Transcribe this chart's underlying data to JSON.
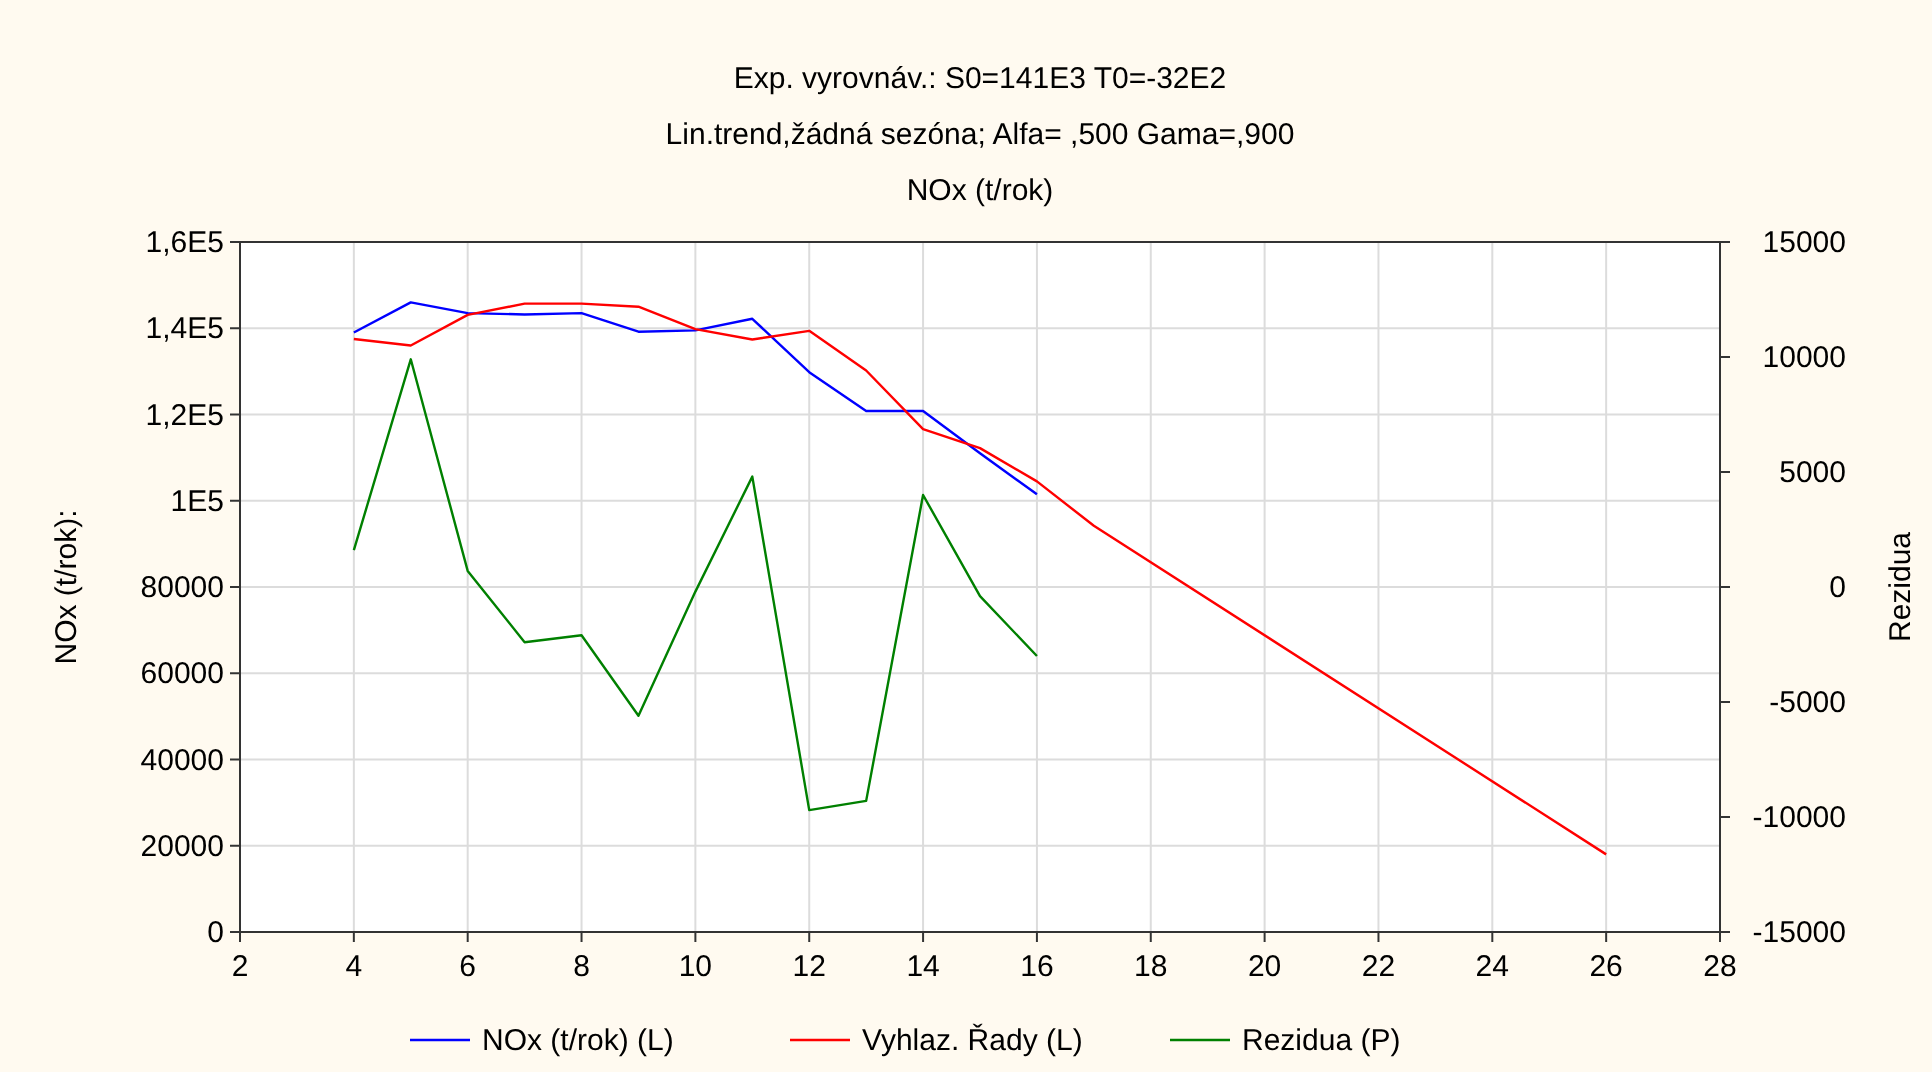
{
  "chart_data": {
    "type": "line",
    "title": "Exp. vyrovnáv.:  S0=141E3 T0=-32E2",
    "subtitle": "Lin.trend,žádná sezóna; Alfa=  ,500 Gama=,900\nNOx (t/rok)",
    "ylabel": "NOx (t/rok):",
    "y2label": "Rezidua",
    "xlim": [
      2,
      28
    ],
    "xticks": [
      2,
      4,
      6,
      8,
      10,
      12,
      14,
      16,
      18,
      20,
      22,
      24,
      26,
      28
    ],
    "ylim": [
      0,
      160000
    ],
    "yticks": [
      0,
      20000,
      40000,
      60000,
      80000,
      {
        "value": 100000,
        "label": "1E5"
      },
      {
        "value": 120000,
        "label": "1,2E5"
      },
      {
        "value": 140000,
        "label": "1,4E5"
      },
      {
        "value": 160000,
        "label": "1,6E5"
      }
    ],
    "y2lim": [
      -15000,
      15000
    ],
    "y2ticks": [
      -15000,
      -10000,
      -5000,
      0,
      5000,
      10000,
      15000
    ],
    "grid": true,
    "legend": "bottom",
    "line_style": "solid",
    "marker": "none",
    "series": [
      {
        "name": "NOx (t/rok) (L)",
        "color": "#0000ff",
        "x": [
          4,
          5,
          6,
          7,
          8,
          9,
          10,
          11,
          12,
          13,
          14,
          15,
          16
        ],
        "values": [
          139000,
          146000,
          143500,
          143200,
          143500,
          139200,
          139500,
          142200,
          129800,
          120800,
          120800,
          111000,
          101500
        ]
      },
      {
        "name": "Vyhlaz. Řady (L)",
        "color": "#ff0000",
        "x": [
          4,
          5,
          6,
          7,
          8,
          9,
          10,
          11,
          12,
          13,
          14,
          15,
          16,
          17,
          26
        ],
        "values": [
          137500,
          136000,
          143100,
          145700,
          145700,
          145000,
          139800,
          137400,
          139400,
          130200,
          116600,
          112200,
          104500,
          94200,
          18000
        ]
      },
      {
        "name": "Rezidua (P)",
        "color": "#008000",
        "axis": "y2",
        "x": [
          4,
          5,
          6,
          7,
          8,
          9,
          10,
          11,
          12,
          13,
          14,
          15,
          16
        ],
        "values": [
          1600,
          9900,
          700,
          -2400,
          -2100,
          -5600,
          -200,
          4800,
          -9700,
          -9300,
          4000,
          -400,
          -3000
        ]
      }
    ]
  }
}
